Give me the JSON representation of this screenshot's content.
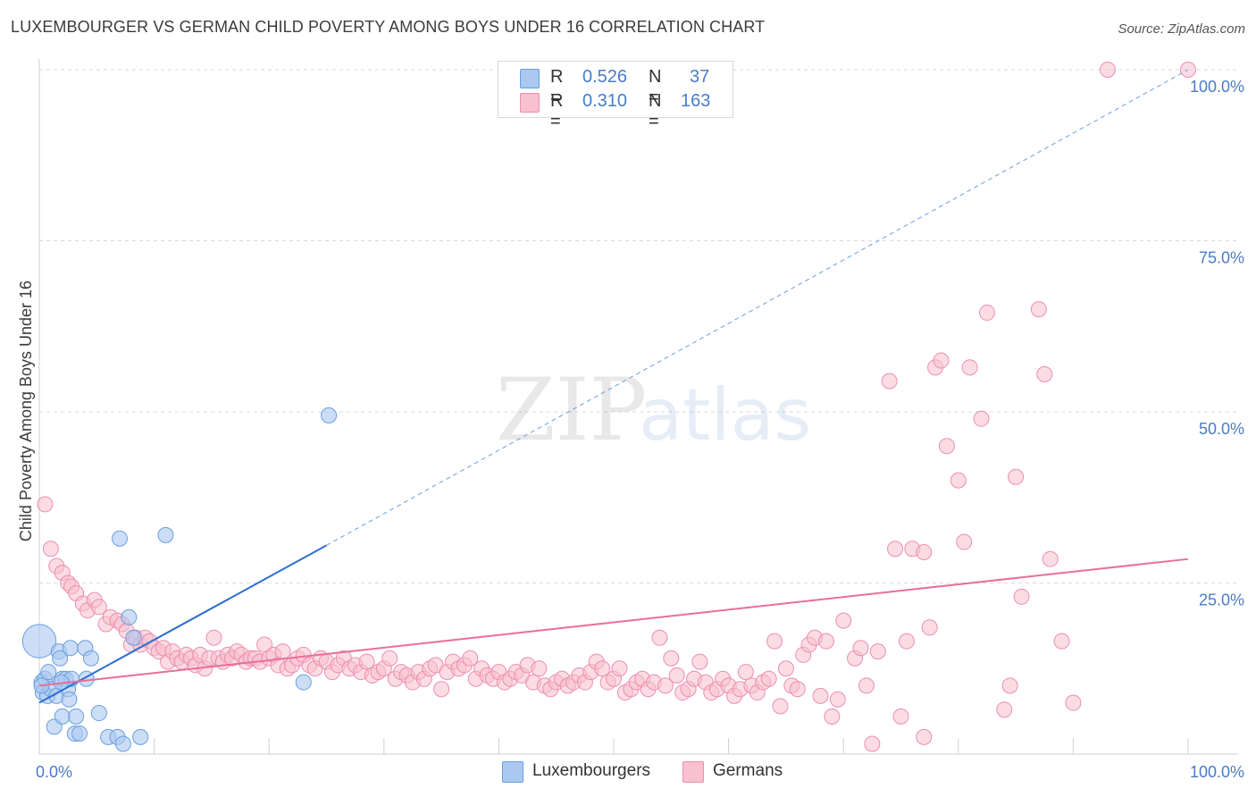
{
  "title": "LUXEMBOURGER VS GERMAN CHILD POVERTY AMONG BOYS UNDER 16 CORRELATION CHART",
  "source": "Source: ZipAtlas.com",
  "watermark": {
    "zip": "ZIP",
    "atlas": "atlas"
  },
  "colors": {
    "lux_fill": "#aac8f0",
    "lux_stroke": "#6a9ee0",
    "lux_line": "#2d6fcf",
    "ger_fill": "#f8c0d0",
    "ger_stroke": "#ec8fac",
    "ger_line": "#e86e98",
    "tick": "#4a7bc8",
    "grid": "#d9d9d9"
  },
  "legend": {
    "rows": [
      {
        "r_label": "R =",
        "r_value": "0.526",
        "n_label": "N =",
        "n_value": "37"
      },
      {
        "r_label": "R =",
        "r_value": "0.310",
        "n_label": "N =",
        "n_value": "163"
      }
    ]
  },
  "bottom_legend": {
    "lux": "Luxembourgers",
    "ger": "Germans"
  },
  "chart_data": {
    "type": "scatter",
    "title": "LUXEMBOURGER VS GERMAN CHILD POVERTY AMONG BOYS UNDER 16 CORRELATION CHART",
    "xlabel": "",
    "ylabel": "Child Poverty Among Boys Under 16",
    "xlim": [
      0,
      100
    ],
    "ylim": [
      0,
      100
    ],
    "x_tick_labels": [
      "0.0%",
      "100.0%"
    ],
    "y_tick_labels": [
      "100.0%",
      "75.0%",
      "50.0%",
      "25.0%"
    ],
    "y_tick_values": [
      100,
      75,
      50,
      25
    ],
    "series": [
      {
        "name": "Luxembourgers",
        "r": 0.526,
        "n": 37,
        "trend": {
          "x0": 0,
          "y0": 7.5,
          "x1": 25,
          "y1": 30.5,
          "dashed_to": [
            100,
            100
          ]
        },
        "points": [
          [
            0,
            16.5,
            2.2
          ],
          [
            0.2,
            10.5,
            1
          ],
          [
            0.3,
            9,
            1
          ],
          [
            0.5,
            11,
            1
          ],
          [
            0.7,
            8.5,
            1
          ],
          [
            0.8,
            12,
            1
          ],
          [
            1,
            9.5,
            1
          ],
          [
            1.3,
            4,
            1
          ],
          [
            1.5,
            8.5,
            1
          ],
          [
            1.7,
            15,
            1
          ],
          [
            1.8,
            14,
            1
          ],
          [
            2,
            11,
            1
          ],
          [
            2,
            5.5,
            1
          ],
          [
            2.3,
            11,
            1
          ],
          [
            2.5,
            9.5,
            1
          ],
          [
            2.6,
            8,
            1
          ],
          [
            2.7,
            15.5,
            1
          ],
          [
            2.8,
            11,
            1
          ],
          [
            3.1,
            3,
            1
          ],
          [
            3.2,
            5.5,
            1
          ],
          [
            3.5,
            3,
            1
          ],
          [
            4,
            15.5,
            1
          ],
          [
            4.1,
            11,
            1
          ],
          [
            4.5,
            14,
            1
          ],
          [
            5.2,
            6,
            1
          ],
          [
            6,
            2.5,
            1
          ],
          [
            6.8,
            2.5,
            1
          ],
          [
            7,
            31.5,
            1
          ],
          [
            7.3,
            1.5,
            1
          ],
          [
            7.8,
            20,
            1
          ],
          [
            8.2,
            17,
            1
          ],
          [
            8.8,
            2.5,
            1
          ],
          [
            11,
            32,
            1
          ],
          [
            23,
            10.5,
            1
          ],
          [
            25.2,
            49.5,
            1
          ],
          [
            0.2,
            10,
            1
          ],
          [
            1.9,
            10.5,
            1
          ]
        ]
      },
      {
        "name": "Germans",
        "r": 0.31,
        "n": 163,
        "trend": {
          "x0": 0,
          "y0": 10,
          "x1": 100,
          "y1": 28.5
        },
        "points": [
          [
            0.5,
            36.5
          ],
          [
            1,
            30
          ],
          [
            1.5,
            27.5
          ],
          [
            2,
            26.5
          ],
          [
            2.5,
            25
          ],
          [
            2.8,
            24.5
          ],
          [
            3.2,
            23.5
          ],
          [
            3.8,
            22
          ],
          [
            4.2,
            21
          ],
          [
            4.8,
            22.5
          ],
          [
            5.2,
            21.5
          ],
          [
            5.8,
            19
          ],
          [
            6.2,
            20
          ],
          [
            6.8,
            19.5
          ],
          [
            7.2,
            19
          ],
          [
            7.6,
            18
          ],
          [
            8,
            16
          ],
          [
            8.4,
            17
          ],
          [
            8.8,
            16
          ],
          [
            9.2,
            17
          ],
          [
            9.6,
            16.5
          ],
          [
            10,
            15.5
          ],
          [
            10.4,
            15
          ],
          [
            10.8,
            15.5
          ],
          [
            11.2,
            13.5
          ],
          [
            11.6,
            15
          ],
          [
            12,
            14
          ],
          [
            12.4,
            13.5
          ],
          [
            12.8,
            14.5
          ],
          [
            13.2,
            14
          ],
          [
            13.6,
            13
          ],
          [
            14,
            14.5
          ],
          [
            14.4,
            12.5
          ],
          [
            14.8,
            14
          ],
          [
            15.2,
            17
          ],
          [
            15.6,
            14
          ],
          [
            16,
            13.5
          ],
          [
            16.4,
            14.5
          ],
          [
            16.8,
            14
          ],
          [
            17.2,
            15
          ],
          [
            17.6,
            14.5
          ],
          [
            18,
            13.5
          ],
          [
            18.4,
            14
          ],
          [
            18.8,
            14
          ],
          [
            19.2,
            13.5
          ],
          [
            19.6,
            16
          ],
          [
            20,
            14
          ],
          [
            20.4,
            14.5
          ],
          [
            20.8,
            13
          ],
          [
            21.2,
            15
          ],
          [
            21.6,
            12.5
          ],
          [
            22,
            13
          ],
          [
            22.5,
            14
          ],
          [
            23,
            14.5
          ],
          [
            23.5,
            13
          ],
          [
            24,
            12.5
          ],
          [
            24.5,
            14
          ],
          [
            25,
            13.5
          ],
          [
            25.5,
            12
          ],
          [
            26,
            13
          ],
          [
            26.5,
            14
          ],
          [
            27,
            12.5
          ],
          [
            27.5,
            13
          ],
          [
            28,
            12
          ],
          [
            28.5,
            13.5
          ],
          [
            29,
            11.5
          ],
          [
            29.5,
            12
          ],
          [
            30,
            12.5
          ],
          [
            30.5,
            14
          ],
          [
            31,
            11
          ],
          [
            31.5,
            12
          ],
          [
            32,
            11.5
          ],
          [
            32.5,
            10.5
          ],
          [
            33,
            12
          ],
          [
            33.5,
            11
          ],
          [
            34,
            12.5
          ],
          [
            34.5,
            13
          ],
          [
            35,
            9.5
          ],
          [
            35.5,
            12
          ],
          [
            36,
            13.5
          ],
          [
            36.5,
            12.5
          ],
          [
            37,
            13
          ],
          [
            37.5,
            14
          ],
          [
            38,
            11
          ],
          [
            38.5,
            12.5
          ],
          [
            39,
            11.5
          ],
          [
            39.5,
            11
          ],
          [
            40,
            12
          ],
          [
            40.5,
            10.5
          ],
          [
            41,
            11
          ],
          [
            41.5,
            12
          ],
          [
            42,
            11.5
          ],
          [
            42.5,
            13
          ],
          [
            43,
            10.5
          ],
          [
            43.5,
            12.5
          ],
          [
            44,
            10
          ],
          [
            44.5,
            9.5
          ],
          [
            45,
            10.5
          ],
          [
            45.5,
            11
          ],
          [
            46,
            10
          ],
          [
            46.5,
            10.5
          ],
          [
            47,
            11.5
          ],
          [
            47.5,
            10.5
          ],
          [
            48,
            12
          ],
          [
            48.5,
            13.5
          ],
          [
            49,
            12.5
          ],
          [
            49.5,
            10.5
          ],
          [
            50,
            11
          ],
          [
            50.5,
            12.5
          ],
          [
            51,
            9
          ],
          [
            51.5,
            9.5
          ],
          [
            52,
            10.5
          ],
          [
            52.5,
            11
          ],
          [
            53,
            9.5
          ],
          [
            53.5,
            10.5
          ],
          [
            54,
            17
          ],
          [
            54.5,
            10
          ],
          [
            55,
            14
          ],
          [
            55.5,
            11.5
          ],
          [
            56,
            9
          ],
          [
            56.5,
            9.5
          ],
          [
            57,
            11
          ],
          [
            57.5,
            13.5
          ],
          [
            58,
            10.5
          ],
          [
            58.5,
            9
          ],
          [
            59,
            9.5
          ],
          [
            59.5,
            11
          ],
          [
            60,
            10
          ],
          [
            60.5,
            8.5
          ],
          [
            61,
            9.5
          ],
          [
            61.5,
            12
          ],
          [
            62,
            10
          ],
          [
            62.5,
            9
          ],
          [
            63,
            10.5
          ],
          [
            63.5,
            11
          ],
          [
            64,
            16.5
          ],
          [
            64.5,
            7
          ],
          [
            65,
            12.5
          ],
          [
            65.5,
            10
          ],
          [
            66,
            9.5
          ],
          [
            66.5,
            14.5
          ],
          [
            67,
            16
          ],
          [
            67.5,
            17
          ],
          [
            68,
            8.5
          ],
          [
            68.5,
            16.5
          ],
          [
            69,
            5.5
          ],
          [
            69.5,
            8
          ],
          [
            70,
            19.5
          ],
          [
            71,
            14
          ],
          [
            71.5,
            15.5
          ],
          [
            72,
            10
          ],
          [
            72.5,
            1.5
          ],
          [
            73,
            15
          ],
          [
            74,
            54.5
          ],
          [
            74.5,
            30
          ],
          [
            75,
            5.5
          ],
          [
            75.5,
            16.5
          ],
          [
            76,
            30
          ],
          [
            77,
            29.5
          ],
          [
            77.5,
            18.5
          ],
          [
            77,
            2.5
          ],
          [
            78,
            56.5
          ],
          [
            78.5,
            57.5
          ],
          [
            79,
            45
          ],
          [
            80,
            40
          ],
          [
            80.5,
            31
          ],
          [
            81,
            56.5
          ],
          [
            82,
            49
          ],
          [
            82.5,
            64.5
          ],
          [
            84,
            6.5
          ],
          [
            84.5,
            10
          ],
          [
            85,
            40.5
          ],
          [
            85.5,
            23
          ],
          [
            87,
            65
          ],
          [
            87.5,
            55.5
          ],
          [
            88,
            28.5
          ],
          [
            89,
            16.5
          ],
          [
            90,
            7.5
          ],
          [
            93,
            100
          ],
          [
            100,
            100
          ]
        ]
      }
    ]
  }
}
